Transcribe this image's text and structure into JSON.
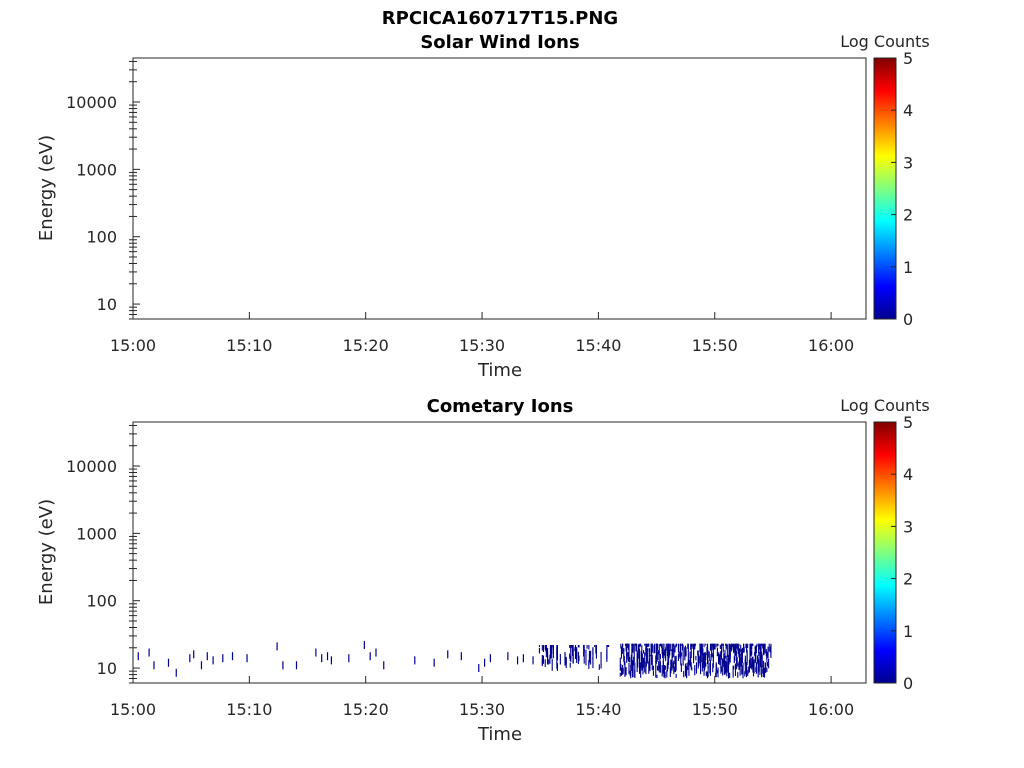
{
  "figure_title": "RPCICA160717T15.PNG",
  "chart_data": [
    {
      "type": "heatmap",
      "title": "Solar Wind Ions",
      "xlabel": "Time",
      "ylabel": "Energy (eV)",
      "xticks": [
        "15:00",
        "15:10",
        "15:20",
        "15:30",
        "15:40",
        "15:50",
        "16:00"
      ],
      "xlim": [
        "15:00",
        "16:03"
      ],
      "yscale": "log",
      "ylim": [
        6,
        45000
      ],
      "yticks": [
        10,
        100,
        1000,
        10000
      ],
      "ytick_labels": [
        "10",
        "100",
        "1000",
        "10000"
      ],
      "colorbar": {
        "label": "Log Counts",
        "range": [
          0,
          5
        ],
        "ticks": [
          "0",
          "1",
          "2",
          "3",
          "4",
          "5"
        ]
      },
      "cells": []
    },
    {
      "type": "heatmap",
      "title": "Cometary Ions",
      "xlabel": "Time",
      "ylabel": "Energy (eV)",
      "xticks": [
        "15:00",
        "15:10",
        "15:20",
        "15:30",
        "15:40",
        "15:50",
        "16:00"
      ],
      "xlim": [
        "15:00",
        "16:03"
      ],
      "yscale": "log",
      "ylim": [
        6,
        45000
      ],
      "yticks": [
        10,
        100,
        1000,
        10000
      ],
      "ytick_labels": [
        "10",
        "100",
        "1000",
        "10000"
      ],
      "colorbar": {
        "label": "Log Counts",
        "range": [
          0,
          5
        ],
        "ticks": [
          "0",
          "1",
          "2",
          "3",
          "4",
          "5"
        ]
      },
      "cells_note_color_value": 0.1,
      "sparse_events": [
        [
          "15:00:24",
          15
        ],
        [
          "15:01:20",
          17
        ],
        [
          "15:01:45",
          11
        ],
        [
          "15:03:00",
          12
        ],
        [
          "15:03:40",
          8.5
        ],
        [
          "15:04:50",
          14
        ],
        [
          "15:05:10",
          16
        ],
        [
          "15:05:50",
          11
        ],
        [
          "15:06:20",
          15
        ],
        [
          "15:06:50",
          13
        ],
        [
          "15:07:40",
          14
        ],
        [
          "15:08:30",
          15
        ],
        [
          "15:09:45",
          14
        ],
        [
          "15:12:20",
          21
        ],
        [
          "15:12:50",
          11
        ],
        [
          "15:14:00",
          11
        ],
        [
          "15:15:40",
          17
        ],
        [
          "15:16:10",
          14
        ],
        [
          "15:16:40",
          15
        ],
        [
          "15:17:00",
          13
        ],
        [
          "15:18:30",
          14
        ],
        [
          "15:19:50",
          22
        ],
        [
          "15:20:20",
          15
        ],
        [
          "15:20:50",
          17
        ],
        [
          "15:21:30",
          11
        ],
        [
          "15:24:10",
          13
        ],
        [
          "15:25:50",
          12
        ],
        [
          "15:27:00",
          16
        ],
        [
          "15:28:10",
          15
        ],
        [
          "15:29:40",
          10
        ],
        [
          "15:30:10",
          12
        ],
        [
          "15:30:40",
          14
        ],
        [
          "15:32:10",
          15
        ],
        [
          "15:33:00",
          13
        ],
        [
          "15:33:30",
          14
        ],
        [
          "15:34:20",
          13
        ]
      ],
      "dense_bands": [
        {
          "start": "15:34:50",
          "end": "15:41:00",
          "e_min": 9,
          "e_max": 22,
          "density": 0.45
        },
        {
          "start": "15:41:50",
          "end": "15:54:50",
          "e_min": 7,
          "e_max": 23,
          "density": 0.9
        }
      ]
    }
  ]
}
